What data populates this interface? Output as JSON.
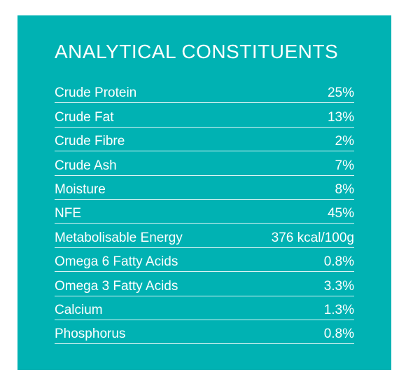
{
  "title": "ANALYTICAL CONSTITUENTS",
  "colors": {
    "panel_background": "#00b2b3",
    "text": "#ffffff"
  },
  "rows": [
    {
      "label": "Crude Protein",
      "value": "25%"
    },
    {
      "label": "Crude Fat",
      "value": "13%"
    },
    {
      "label": "Crude Fibre",
      "value": "2%"
    },
    {
      "label": "Crude Ash",
      "value": "7%"
    },
    {
      "label": "Moisture",
      "value": "8%"
    },
    {
      "label": "NFE",
      "value": "45%"
    },
    {
      "label": "Metabolisable Energy",
      "value": "376 kcal/100g"
    },
    {
      "label": "Omega 6 Fatty Acids",
      "value": "0.8%"
    },
    {
      "label": "Omega 3 Fatty Acids",
      "value": "3.3%"
    },
    {
      "label": "Calcium",
      "value": "1.3%"
    },
    {
      "label": "Phosphorus",
      "value": "0.8%"
    }
  ]
}
